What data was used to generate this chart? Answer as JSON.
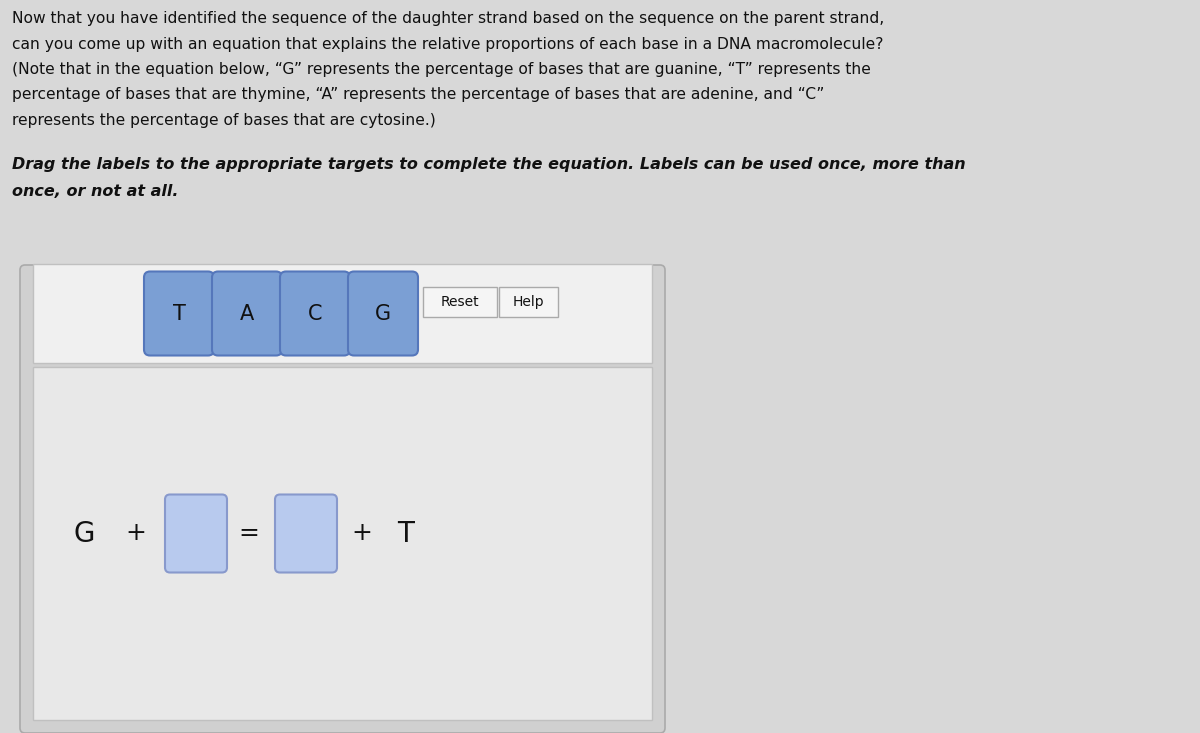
{
  "bg_color": "#d8d8d8",
  "white_bg": "#d8d8d8",
  "text_color": "#111111",
  "paragraph_text_lines": [
    "Now that you have identified the sequence of the daughter strand based on the sequence on the parent strand,",
    "can you come up with an equation that explains the relative proportions of each base in a DNA macromolecule?",
    "(Note that in the equation below, “G” represents the percentage of bases that are guanine, “T” represents the",
    "percentage of bases that are thymine, “A” represents the percentage of bases that are adenine, and “C”",
    "represents the percentage of bases that are cytosine.)"
  ],
  "instruction_line1": "Drag the labels to the appropriate targets to complete the equation. Labels can be used once, more than",
  "instruction_line2": "once, or not at all.",
  "labels": [
    "T",
    "A",
    "C",
    "G"
  ],
  "button_color": "#7b9fd4",
  "button_edge_color": "#5577bb",
  "empty_box_color": "#b8caee",
  "empty_box_edge": "#8899cc",
  "panel_outer_bg": "#d0d0d0",
  "panel_outer_edge": "#aaaaaa",
  "panel_inner_top_bg": "#f0f0f0",
  "panel_inner_top_edge": "#c0c0c0",
  "panel_inner_bottom_bg": "#e8e8e8",
  "panel_inner_bottom_edge": "#c0c0c0",
  "reset_btn_bg": "#f5f5f5",
  "reset_btn_edge": "#aaaaaa",
  "help_btn_bg": "#f5f5f5",
  "help_btn_edge": "#aaaaaa",
  "reset_label": "Reset",
  "help_label": "Help",
  "para_fontsize": 11.2,
  "instr_fontsize": 11.5,
  "label_fontsize": 15,
  "eq_fontsize": 20,
  "btn_fontsize": 10
}
